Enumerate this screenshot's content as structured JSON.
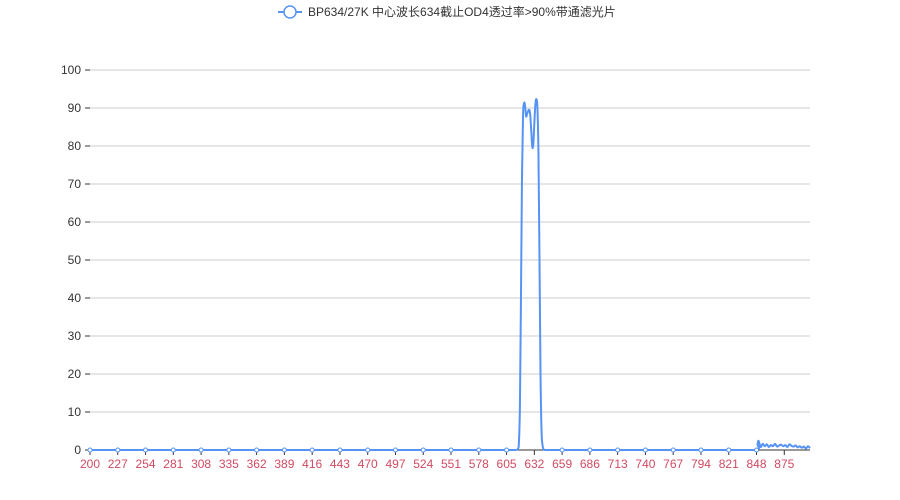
{
  "chart_data": {
    "type": "line",
    "title": "",
    "xlabel": "",
    "ylabel": "",
    "legend": {
      "position": "top-center",
      "entries": [
        "BP634/27K 中心波长634截止OD4透过率>90%带通滤光片"
      ]
    },
    "colors": {
      "series": "#5793f3",
      "x_tick_labels": "#d14a61",
      "grid": "#cccccc"
    },
    "grid": true,
    "xlim": [
      200,
      900
    ],
    "ylim": [
      0,
      100
    ],
    "x_ticks": [
      200,
      227,
      254,
      281,
      308,
      335,
      362,
      389,
      416,
      443,
      470,
      497,
      524,
      551,
      578,
      605,
      632,
      659,
      686,
      713,
      740,
      767,
      794,
      821,
      848,
      875
    ],
    "y_ticks": [
      0,
      10,
      20,
      30,
      40,
      50,
      60,
      70,
      80,
      90,
      100
    ],
    "series": [
      {
        "name": "BP634/27K 中心波长634截止OD4透过率>90%带通滤光片",
        "x": [
          200,
          227,
          254,
          281,
          308,
          335,
          362,
          389,
          416,
          443,
          470,
          497,
          524,
          551,
          578,
          605,
          614,
          616,
          617,
          618,
          619,
          620,
          621,
          622,
          623,
          624,
          625,
          626,
          627,
          628,
          629,
          630,
          631,
          632,
          633,
          634,
          635,
          636,
          637,
          638,
          639,
          640,
          641,
          642,
          643,
          644,
          645,
          646,
          647,
          648,
          650,
          659,
          686,
          713,
          740,
          767,
          794,
          821,
          848,
          849,
          850,
          852,
          854,
          856,
          858,
          860,
          862,
          864,
          866,
          868,
          870,
          872,
          874,
          876,
          878,
          880,
          882,
          884,
          886,
          888,
          890,
          892,
          894,
          896,
          898,
          900
        ],
        "values": [
          0,
          0,
          0,
          0,
          0,
          0,
          0,
          0,
          0,
          0,
          0,
          0,
          0,
          0,
          0,
          0,
          0,
          0.3,
          2,
          12,
          40,
          72,
          88,
          91.3,
          90.5,
          87.8,
          88.5,
          89.2,
          89.5,
          88.2,
          84,
          79.8,
          80.5,
          86,
          91,
          92.3,
          90,
          78,
          50,
          20,
          5,
          1.2,
          0.2,
          0,
          0,
          0,
          0,
          0,
          0,
          0,
          0,
          0,
          0,
          0,
          0,
          0,
          0,
          0,
          0,
          1.5,
          2.4,
          0.8,
          1.6,
          1.0,
          1.5,
          0.8,
          1.3,
          1.0,
          1.6,
          0.9,
          1.2,
          1.4,
          1.0,
          1.3,
          0.8,
          1.5,
          1.1,
          0.9,
          1.2,
          0.7,
          1.0,
          0.6,
          0.9,
          0.4,
          1.0,
          0.5
        ]
      }
    ]
  }
}
